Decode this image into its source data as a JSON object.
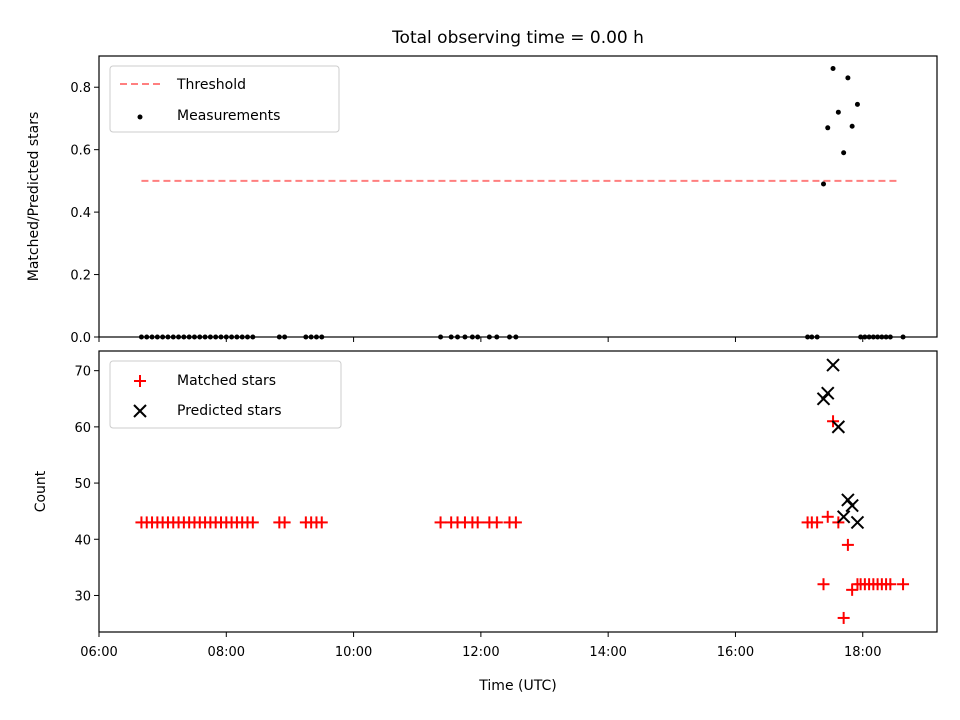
{
  "chart_data": [
    {
      "type": "scatter",
      "title": "Total observing time = 0.00 h",
      "xlabel": "",
      "ylabel": "Matched/Predicted stars",
      "ylim": [
        0,
        0.9
      ],
      "yticks": [
        "0.0",
        "0.2",
        "0.4",
        "0.6",
        "0.8"
      ],
      "xlim": [
        "06:00",
        "19:10"
      ],
      "legend_position": "upper-left",
      "grid": false,
      "threshold": {
        "name": "Threshold",
        "value": 0.5,
        "x_range": [
          "06:40",
          "18:35"
        ],
        "color": "#ff7f7f",
        "style": "dashed"
      },
      "series": [
        {
          "name": "Measurements",
          "color": "#000000",
          "marker": "dot",
          "points": [
            [
              "06:40",
              0
            ],
            [
              "06:45",
              0
            ],
            [
              "06:50",
              0
            ],
            [
              "06:55",
              0
            ],
            [
              "07:00",
              0
            ],
            [
              "07:05",
              0
            ],
            [
              "07:10",
              0
            ],
            [
              "07:15",
              0
            ],
            [
              "07:20",
              0
            ],
            [
              "07:25",
              0
            ],
            [
              "07:30",
              0
            ],
            [
              "07:35",
              0
            ],
            [
              "07:40",
              0
            ],
            [
              "07:45",
              0
            ],
            [
              "07:50",
              0
            ],
            [
              "07:55",
              0
            ],
            [
              "08:00",
              0
            ],
            [
              "08:05",
              0
            ],
            [
              "08:10",
              0
            ],
            [
              "08:15",
              0
            ],
            [
              "08:20",
              0
            ],
            [
              "08:25",
              0
            ],
            [
              "08:50",
              0
            ],
            [
              "08:55",
              0
            ],
            [
              "09:15",
              0
            ],
            [
              "09:20",
              0
            ],
            [
              "09:25",
              0
            ],
            [
              "09:30",
              0
            ],
            [
              "11:22",
              0
            ],
            [
              "11:32",
              0
            ],
            [
              "11:38",
              0
            ],
            [
              "11:45",
              0
            ],
            [
              "11:52",
              0
            ],
            [
              "11:57",
              0
            ],
            [
              "12:08",
              0
            ],
            [
              "12:15",
              0
            ],
            [
              "12:27",
              0
            ],
            [
              "12:33",
              0
            ],
            [
              "17:08",
              0
            ],
            [
              "17:12",
              0
            ],
            [
              "17:17",
              0
            ],
            [
              "17:23",
              0.49
            ],
            [
              "17:27",
              0.67
            ],
            [
              "17:32",
              0.86
            ],
            [
              "17:37",
              0.72
            ],
            [
              "17:42",
              0.59
            ],
            [
              "17:46",
              0.83
            ],
            [
              "17:50",
              0.675
            ],
            [
              "17:55",
              0.745
            ],
            [
              "17:58",
              0
            ],
            [
              "18:02",
              0
            ],
            [
              "18:06",
              0
            ],
            [
              "18:10",
              0
            ],
            [
              "18:14",
              0
            ],
            [
              "18:18",
              0
            ],
            [
              "18:22",
              0
            ],
            [
              "18:26",
              0
            ],
            [
              "18:38",
              0
            ]
          ]
        }
      ]
    },
    {
      "type": "scatter",
      "title": "",
      "xlabel": "Time (UTC)",
      "ylabel": "Count",
      "ylim": [
        23.5,
        73.5
      ],
      "yticks": [
        "30",
        "40",
        "50",
        "60",
        "70"
      ],
      "xticks": [
        "06:00",
        "08:00",
        "10:00",
        "12:00",
        "14:00",
        "16:00",
        "18:00"
      ],
      "xlim": [
        "06:00",
        "19:10"
      ],
      "legend_position": "upper-left",
      "grid": false,
      "series": [
        {
          "name": "Matched stars",
          "color": "#ff0000",
          "marker": "plus",
          "points": [
            [
              "06:40",
              43
            ],
            [
              "06:45",
              43
            ],
            [
              "06:50",
              43
            ],
            [
              "06:55",
              43
            ],
            [
              "07:00",
              43
            ],
            [
              "07:05",
              43
            ],
            [
              "07:10",
              43
            ],
            [
              "07:15",
              43
            ],
            [
              "07:20",
              43
            ],
            [
              "07:25",
              43
            ],
            [
              "07:30",
              43
            ],
            [
              "07:35",
              43
            ],
            [
              "07:40",
              43
            ],
            [
              "07:45",
              43
            ],
            [
              "07:50",
              43
            ],
            [
              "07:55",
              43
            ],
            [
              "08:00",
              43
            ],
            [
              "08:05",
              43
            ],
            [
              "08:10",
              43
            ],
            [
              "08:15",
              43
            ],
            [
              "08:20",
              43
            ],
            [
              "08:25",
              43
            ],
            [
              "08:50",
              43
            ],
            [
              "08:55",
              43
            ],
            [
              "09:15",
              43
            ],
            [
              "09:20",
              43
            ],
            [
              "09:25",
              43
            ],
            [
              "09:30",
              43
            ],
            [
              "11:22",
              43
            ],
            [
              "11:32",
              43
            ],
            [
              "11:38",
              43
            ],
            [
              "11:45",
              43
            ],
            [
              "11:52",
              43
            ],
            [
              "11:57",
              43
            ],
            [
              "12:08",
              43
            ],
            [
              "12:15",
              43
            ],
            [
              "12:27",
              43
            ],
            [
              "12:33",
              43
            ],
            [
              "17:08",
              43
            ],
            [
              "17:12",
              43
            ],
            [
              "17:17",
              43
            ],
            [
              "17:23",
              32
            ],
            [
              "17:27",
              44
            ],
            [
              "17:32",
              61
            ],
            [
              "17:37",
              43
            ],
            [
              "17:42",
              26
            ],
            [
              "17:46",
              39
            ],
            [
              "17:50",
              31
            ],
            [
              "17:55",
              32
            ],
            [
              "17:58",
              32
            ],
            [
              "18:02",
              32
            ],
            [
              "18:06",
              32
            ],
            [
              "18:10",
              32
            ],
            [
              "18:14",
              32
            ],
            [
              "18:18",
              32
            ],
            [
              "18:22",
              32
            ],
            [
              "18:26",
              32
            ],
            [
              "18:38",
              32
            ]
          ]
        },
        {
          "name": "Predicted stars",
          "color": "#000000",
          "marker": "x",
          "points": [
            [
              "17:23",
              65
            ],
            [
              "17:27",
              66
            ],
            [
              "17:32",
              71
            ],
            [
              "17:37",
              60
            ],
            [
              "17:42",
              44
            ],
            [
              "17:46",
              47
            ],
            [
              "17:50",
              46
            ],
            [
              "17:55",
              43
            ]
          ]
        }
      ]
    }
  ]
}
